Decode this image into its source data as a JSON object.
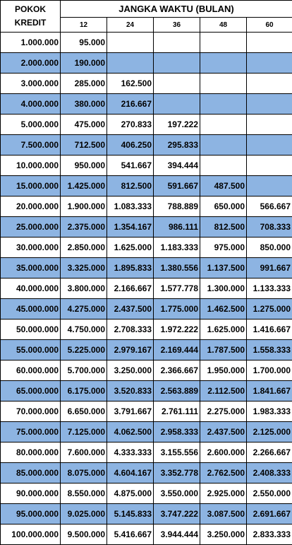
{
  "header": {
    "pokok_line1": "POKOK",
    "pokok_line2": "KREDIT",
    "title": "JANGKA WAKTU (BULAN)",
    "months": [
      "12",
      "24",
      "36",
      "48",
      "60"
    ]
  },
  "colors": {
    "row_alt": "#8db4e2",
    "row_plain": "#ffffff",
    "border": "#000000"
  },
  "rows": [
    [
      "1.000.000",
      "95.000",
      "",
      "",
      "",
      ""
    ],
    [
      "2.000.000",
      "190.000",
      "",
      "",
      "",
      ""
    ],
    [
      "3.000.000",
      "285.000",
      "162.500",
      "",
      "",
      ""
    ],
    [
      "4.000.000",
      "380.000",
      "216.667",
      "",
      "",
      ""
    ],
    [
      "5.000.000",
      "475.000",
      "270.833",
      "197.222",
      "",
      ""
    ],
    [
      "7.500.000",
      "712.500",
      "406.250",
      "295.833",
      "",
      ""
    ],
    [
      "10.000.000",
      "950.000",
      "541.667",
      "394.444",
      "",
      ""
    ],
    [
      "15.000.000",
      "1.425.000",
      "812.500",
      "591.667",
      "487.500",
      ""
    ],
    [
      "20.000.000",
      "1.900.000",
      "1.083.333",
      "788.889",
      "650.000",
      "566.667"
    ],
    [
      "25.000.000",
      "2.375.000",
      "1.354.167",
      "986.111",
      "812.500",
      "708.333"
    ],
    [
      "30.000.000",
      "2.850.000",
      "1.625.000",
      "1.183.333",
      "975.000",
      "850.000"
    ],
    [
      "35.000.000",
      "3.325.000",
      "1.895.833",
      "1.380.556",
      "1.137.500",
      "991.667"
    ],
    [
      "40.000.000",
      "3.800.000",
      "2.166.667",
      "1.577.778",
      "1.300.000",
      "1.133.333"
    ],
    [
      "45.000.000",
      "4.275.000",
      "2.437.500",
      "1.775.000",
      "1.462.500",
      "1.275.000"
    ],
    [
      "50.000.000",
      "4.750.000",
      "2.708.333",
      "1.972.222",
      "1.625.000",
      "1.416.667"
    ],
    [
      "55.000.000",
      "5.225.000",
      "2.979.167",
      "2.169.444",
      "1.787.500",
      "1.558.333"
    ],
    [
      "60.000.000",
      "5.700.000",
      "3.250.000",
      "2.366.667",
      "1.950.000",
      "1.700.000"
    ],
    [
      "65.000.000",
      "6.175.000",
      "3.520.833",
      "2.563.889",
      "2.112.500",
      "1.841.667"
    ],
    [
      "70.000.000",
      "6.650.000",
      "3.791.667",
      "2.761.111",
      "2.275.000",
      "1.983.333"
    ],
    [
      "75.000.000",
      "7.125.000",
      "4.062.500",
      "2.958.333",
      "2.437.500",
      "2.125.000"
    ],
    [
      "80.000.000",
      "7.600.000",
      "4.333.333",
      "3.155.556",
      "2.600.000",
      "2.266.667"
    ],
    [
      "85.000.000",
      "8.075.000",
      "4.604.167",
      "3.352.778",
      "2.762.500",
      "2.408.333"
    ],
    [
      "90.000.000",
      "8.550.000",
      "4.875.000",
      "3.550.000",
      "2.925.000",
      "2.550.000"
    ],
    [
      "95.000.000",
      "9.025.000",
      "5.145.833",
      "3.747.222",
      "3.087.500",
      "2.691.667"
    ],
    [
      "100.000.000",
      "9.500.000",
      "5.416.667",
      "3.944.444",
      "3.250.000",
      "2.833.333"
    ]
  ]
}
